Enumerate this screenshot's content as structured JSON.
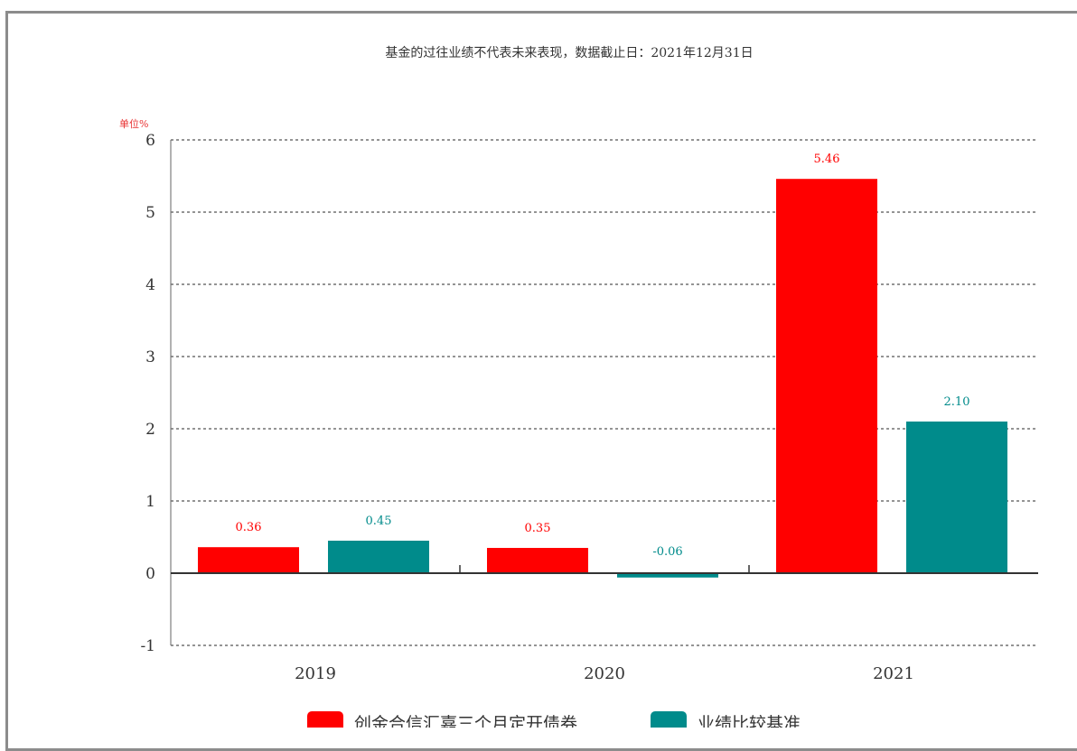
{
  "chart_data": {
    "type": "bar",
    "title": "基金的过往业绩不代表未来表现，数据截止日：2021年12月31日",
    "unit_label": "单位%",
    "categories": [
      "2019",
      "2020",
      "2021"
    ],
    "series": [
      {
        "name": "创金合信汇嘉三个月定开债券",
        "color": "#ff0000",
        "values": [
          0.36,
          0.35,
          5.46
        ],
        "labels": [
          "0.36",
          "0.35",
          "5.46"
        ]
      },
      {
        "name": "业绩比较基准",
        "color": "#008b8b",
        "values": [
          0.45,
          -0.06,
          2.1
        ],
        "labels": [
          "0.45",
          "-0.06",
          "2.10"
        ]
      }
    ],
    "ylim": [
      -1,
      6
    ],
    "yticks": [
      "-1",
      "0",
      "1",
      "2",
      "3",
      "4",
      "5",
      "6"
    ],
    "grid": true,
    "legend_position": "bottom"
  }
}
